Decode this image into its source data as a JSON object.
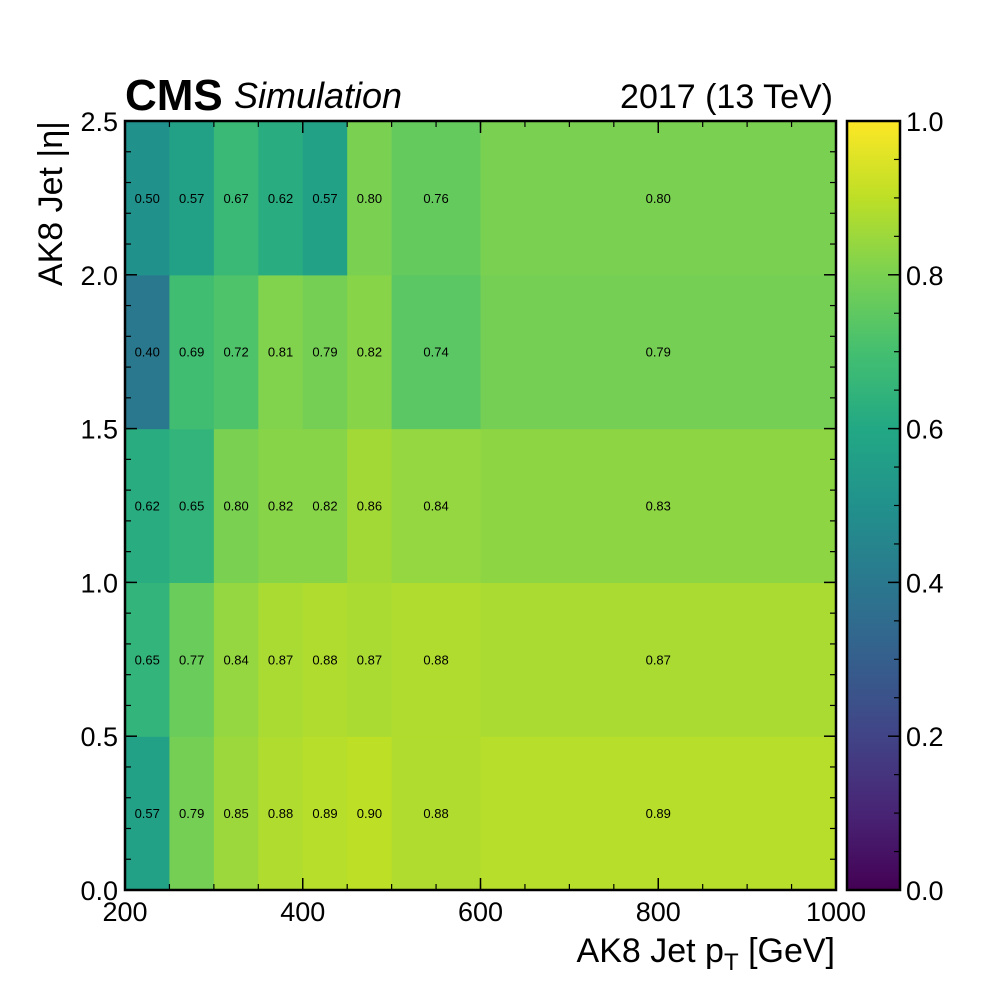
{
  "header": {
    "experiment": "CMS",
    "label": "Simulation",
    "lumi": "2017 (13 TeV)"
  },
  "chart_data": {
    "type": "heatmap",
    "xlabel_main": "AK8 Jet p",
    "xlabel_sub": "T",
    "xlabel_unit": " [GeV]",
    "ylabel": "AK8 Jet |η|",
    "x_edges": [
      200,
      250,
      300,
      350,
      400,
      450,
      500,
      600,
      1000
    ],
    "y_edges": [
      0.0,
      0.5,
      1.0,
      1.5,
      2.0,
      2.5
    ],
    "xlim": [
      200,
      1000
    ],
    "ylim": [
      0.0,
      2.5
    ],
    "x_ticks": [
      "200",
      "400",
      "600",
      "800",
      "1000"
    ],
    "y_ticks": [
      "0.0",
      "0.5",
      "1.0",
      "1.5",
      "2.0",
      "2.5"
    ],
    "values": [
      [
        0.57,
        0.79,
        0.85,
        0.88,
        0.89,
        0.9,
        0.88,
        0.89
      ],
      [
        0.65,
        0.77,
        0.84,
        0.87,
        0.88,
        0.87,
        0.88,
        0.87
      ],
      [
        0.62,
        0.65,
        0.8,
        0.82,
        0.82,
        0.86,
        0.84,
        0.83
      ],
      [
        0.4,
        0.69,
        0.72,
        0.81,
        0.79,
        0.82,
        0.74,
        0.79
      ],
      [
        0.5,
        0.57,
        0.67,
        0.62,
        0.57,
        0.8,
        0.76,
        0.8
      ]
    ],
    "cell_labels": [
      [
        "0.57",
        "0.79",
        "0.85",
        "0.88",
        "0.89",
        "0.90",
        "0.88",
        "0.89"
      ],
      [
        "0.65",
        "0.77",
        "0.84",
        "0.87",
        "0.88",
        "0.87",
        "0.88",
        "0.87"
      ],
      [
        "0.62",
        "0.65",
        "0.80",
        "0.82",
        "0.82",
        "0.86",
        "0.84",
        "0.83"
      ],
      [
        "0.40",
        "0.69",
        "0.72",
        "0.81",
        "0.79",
        "0.82",
        "0.74",
        "0.79"
      ],
      [
        "0.50",
        "0.57",
        "0.67",
        "0.62",
        "0.57",
        "0.80",
        "0.76",
        "0.80"
      ]
    ],
    "colorbar": {
      "colormap": "viridis",
      "range": [
        0.0,
        1.0
      ],
      "ticks": [
        "0.0",
        "0.2",
        "0.4",
        "0.6",
        "0.8",
        "1.0"
      ]
    },
    "grid": false
  }
}
